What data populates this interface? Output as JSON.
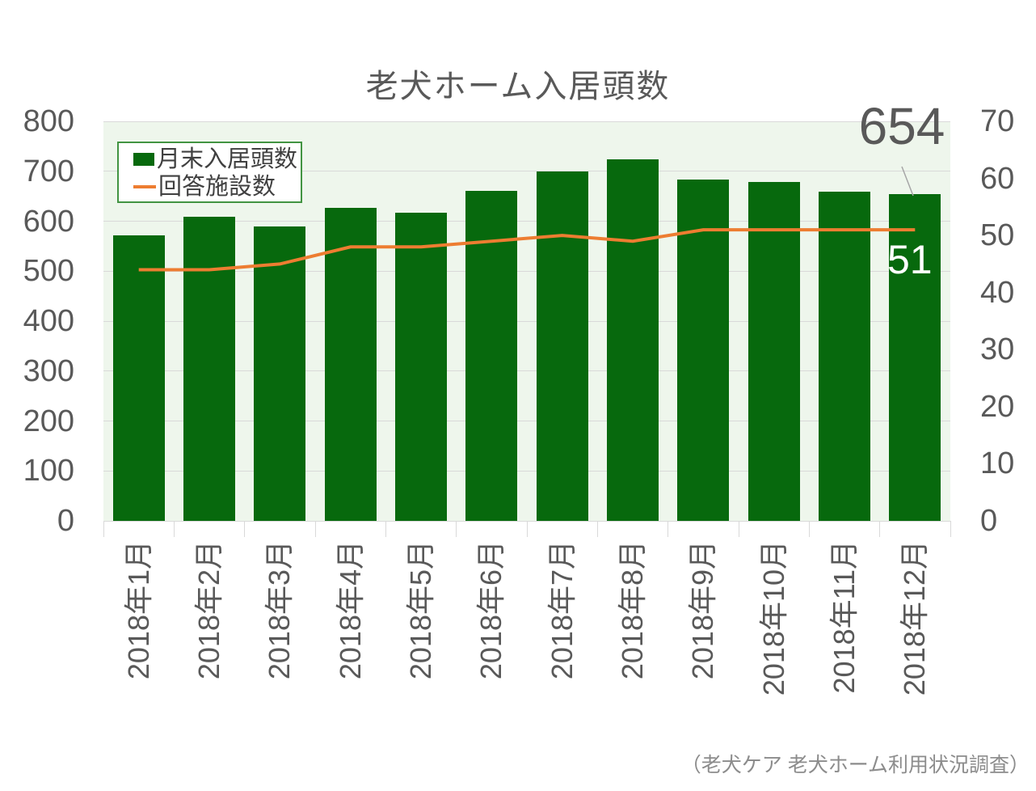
{
  "title": "老犬ホーム入居頭数",
  "source_note": "（老犬ケア 老犬ホーム利用状況調査）",
  "annotations": {
    "last_bar_value": "654",
    "last_line_value": "51"
  },
  "colors": {
    "bar": "#07690d",
    "line": "#ED7D31",
    "plot_background": "#eef6ec",
    "grid": "#d9d9d9",
    "axis_text": "#595959",
    "title_text": "#595959",
    "legend_border": "#429442",
    "legend_text": "#404040",
    "annotation_text": "#595959",
    "line_label_text": "#ffffff",
    "leader_line": "#a6a6a6",
    "source_text": "#8c8c8c"
  },
  "legend": {
    "position": "top-left",
    "items": [
      {
        "label": "月末入居頭数",
        "marker": "bar-swatch"
      },
      {
        "label": "回答施設数",
        "marker": "line-swatch"
      }
    ]
  },
  "chart_data": {
    "type": "bar",
    "combo": "bar+line",
    "title": "老犬ホーム入居頭数",
    "categories": [
      "2018年1月",
      "2018年2月",
      "2018年3月",
      "2018年4月",
      "2018年5月",
      "2018年6月",
      "2018年7月",
      "2018年8月",
      "2018年9月",
      "2018年10月",
      "2018年11月",
      "2018年12月"
    ],
    "series": [
      {
        "name": "月末入居頭数",
        "type": "bar",
        "axis": "left",
        "values": [
          572,
          609,
          590,
          627,
          617,
          661,
          700,
          724,
          684,
          679,
          660,
          654
        ]
      },
      {
        "name": "回答施設数",
        "type": "line",
        "axis": "right",
        "values": [
          44,
          44,
          45,
          48,
          48,
          49,
          50,
          49,
          51,
          51,
          51,
          51
        ]
      }
    ],
    "left_axis": {
      "min": 0,
      "max": 800,
      "step": 100,
      "tick_labels": [
        "0",
        "100",
        "200",
        "300",
        "400",
        "500",
        "600",
        "700",
        "800"
      ]
    },
    "right_axis": {
      "min": 0,
      "max": 70,
      "step": 10,
      "tick_labels": [
        "0",
        "10",
        "20",
        "30",
        "40",
        "50",
        "60",
        "70"
      ]
    },
    "grid": true,
    "legend_position": "top-left",
    "data_labels": {
      "last_bar": "654",
      "last_line": "51"
    }
  }
}
